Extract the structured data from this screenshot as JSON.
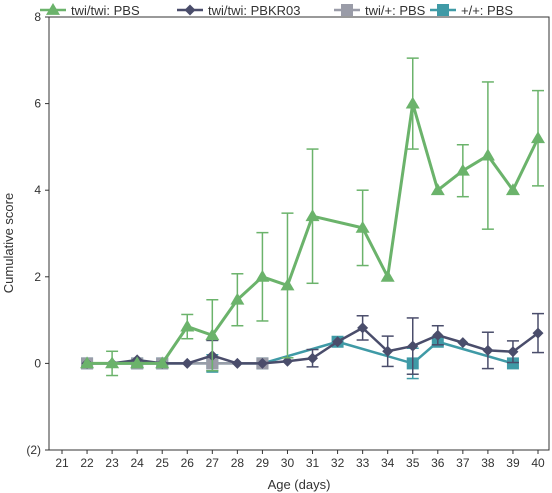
{
  "chart_data": {
    "type": "line",
    "title": "",
    "xlabel": "Age (days)",
    "ylabel": "Cumulative score",
    "xlim": [
      21,
      40
    ],
    "ylim": [
      -2,
      8
    ],
    "x_ticks": [
      21,
      22,
      23,
      24,
      25,
      26,
      27,
      28,
      29,
      30,
      31,
      32,
      33,
      34,
      35,
      36,
      37,
      38,
      39,
      40
    ],
    "y_ticks": [
      {
        "value": 8,
        "label": "8"
      },
      {
        "value": 6,
        "label": "6"
      },
      {
        "value": 4,
        "label": "4"
      },
      {
        "value": 2,
        "label": "2"
      },
      {
        "value": 0,
        "label": "0"
      },
      {
        "value": -2,
        "label": "(2)"
      }
    ],
    "legend_position": "top",
    "grid": false,
    "series": [
      {
        "name": "twi/twi: PBS",
        "color": "#6bb36b",
        "marker": "triangle",
        "points": [
          {
            "x": 22,
            "y": 0
          },
          {
            "x": 23,
            "y": 0,
            "err": 0.28
          },
          {
            "x": 24,
            "y": 0
          },
          {
            "x": 25,
            "y": 0
          },
          {
            "x": 26,
            "y": 0.85,
            "err": 0.28
          },
          {
            "x": 27,
            "y": 0.65,
            "err": 0.82
          },
          {
            "x": 28,
            "y": 1.47,
            "err": 0.6
          },
          {
            "x": 29,
            "y": 2.0,
            "err": 1.02
          },
          {
            "x": 30,
            "y": 1.8,
            "err": 1.67
          },
          {
            "x": 31,
            "y": 3.4,
            "err": 1.55
          },
          {
            "x": 33,
            "y": 3.13,
            "err": 0.87
          },
          {
            "x": 34,
            "y": 2.0
          },
          {
            "x": 35,
            "y": 6.0,
            "err": 1.05
          },
          {
            "x": 36,
            "y": 4.0
          },
          {
            "x": 37,
            "y": 4.45,
            "err": 0.6
          },
          {
            "x": 38,
            "y": 4.8,
            "err": 1.7
          },
          {
            "x": 39,
            "y": 4.0
          },
          {
            "x": 40,
            "y": 5.2,
            "err": 1.1
          }
        ]
      },
      {
        "name": "twi/twi: PBKR03",
        "color": "#4a4d6b",
        "marker": "diamond",
        "points": [
          {
            "x": 22,
            "y": 0
          },
          {
            "x": 23,
            "y": 0
          },
          {
            "x": 24,
            "y": 0.08
          },
          {
            "x": 25,
            "y": 0
          },
          {
            "x": 26,
            "y": 0
          },
          {
            "x": 27,
            "y": 0.18,
            "err": 0.35
          },
          {
            "x": 28,
            "y": 0
          },
          {
            "x": 29,
            "y": 0
          },
          {
            "x": 30,
            "y": 0.05
          },
          {
            "x": 31,
            "y": 0.12,
            "err": 0.2
          },
          {
            "x": 32,
            "y": 0.5
          },
          {
            "x": 33,
            "y": 0.82,
            "err": 0.28
          },
          {
            "x": 34,
            "y": 0.28,
            "err": 0.35
          },
          {
            "x": 35,
            "y": 0.4,
            "err": 0.65
          },
          {
            "x": 36,
            "y": 0.65,
            "err": 0.22
          },
          {
            "x": 37,
            "y": 0.48
          },
          {
            "x": 38,
            "y": 0.3,
            "err": 0.42
          },
          {
            "x": 39,
            "y": 0.27,
            "err": 0.25
          },
          {
            "x": 40,
            "y": 0.7,
            "err": 0.45
          }
        ]
      },
      {
        "name": "twi/+: PBS",
        "color": "#9a9ca8",
        "marker": "square",
        "points": [
          {
            "x": 22,
            "y": 0
          },
          {
            "x": 24,
            "y": 0
          },
          {
            "x": 25,
            "y": 0
          },
          {
            "x": 27,
            "y": 0
          },
          {
            "x": 29,
            "y": 0
          }
        ]
      },
      {
        "name": "+/+: PBS",
        "color": "#3f9aa6",
        "marker": "square",
        "points": [
          {
            "x": 22,
            "y": 0
          },
          {
            "x": 24,
            "y": 0
          },
          {
            "x": 25,
            "y": 0
          },
          {
            "x": 27,
            "y": 0,
            "err": 0.2
          },
          {
            "x": 29,
            "y": 0
          },
          {
            "x": 32,
            "y": 0.5
          },
          {
            "x": 35,
            "y": 0,
            "err": 0.35
          },
          {
            "x": 36,
            "y": 0.5
          },
          {
            "x": 39,
            "y": 0
          }
        ]
      }
    ]
  }
}
